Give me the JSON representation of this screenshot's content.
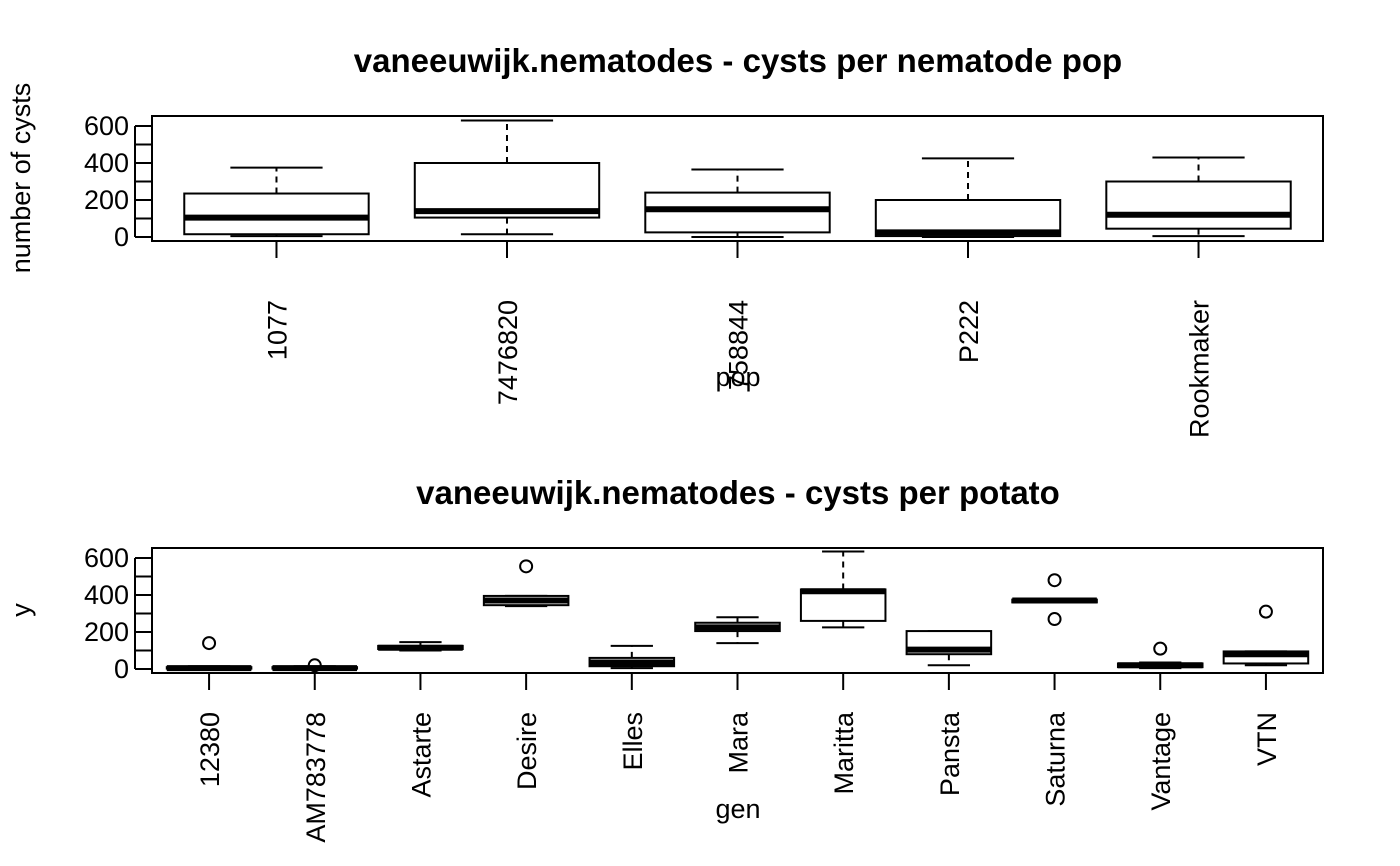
{
  "chart_data": [
    {
      "type": "boxplot",
      "title": "vaneeuwijk.nematodes - cysts per nematode pop",
      "xlabel": "pop",
      "ylabel": "number of cysts",
      "ylim": [
        0,
        650
      ],
      "y_ticks": [
        0,
        200,
        400,
        600
      ],
      "y_tick_labels": [
        "0",
        "200",
        "400",
        "600"
      ],
      "categories": [
        "1077",
        "7476820",
        "758844",
        "P222",
        "Rookmaker"
      ],
      "boxes": [
        {
          "min": 5,
          "q1": 15,
          "median": 105,
          "q3": 235,
          "max": 375,
          "outliers": []
        },
        {
          "min": 15,
          "q1": 105,
          "median": 140,
          "q3": 400,
          "max": 630,
          "outliers": []
        },
        {
          "min": 0,
          "q1": 25,
          "median": 150,
          "q3": 240,
          "max": 365,
          "outliers": []
        },
        {
          "min": 0,
          "q1": 5,
          "median": 25,
          "q3": 200,
          "max": 425,
          "outliers": []
        },
        {
          "min": 5,
          "q1": 45,
          "median": 120,
          "q3": 300,
          "max": 430,
          "outliers": []
        }
      ]
    },
    {
      "type": "boxplot",
      "title": "vaneeuwijk.nematodes - cysts per potato",
      "xlabel": "gen",
      "ylabel": "y",
      "ylim": [
        0,
        650
      ],
      "y_ticks": [
        0,
        200,
        400,
        600
      ],
      "y_tick_labels": [
        "0",
        "200",
        "400",
        "600"
      ],
      "categories": [
        "12380",
        "AM783778",
        "Astarte",
        "Desire",
        "Elles",
        "Mara",
        "Maritta",
        "Pansta",
        "Saturna",
        "Vantage",
        "VTN"
      ],
      "boxes": [
        {
          "min": 0,
          "q1": 2,
          "median": 5,
          "q3": 10,
          "max": 15,
          "outliers": [
            140
          ]
        },
        {
          "min": 0,
          "q1": 2,
          "median": 5,
          "q3": 10,
          "max": 15,
          "outliers": [
            20
          ]
        },
        {
          "min": 100,
          "q1": 108,
          "median": 115,
          "q3": 125,
          "max": 145,
          "outliers": []
        },
        {
          "min": 340,
          "q1": 345,
          "median": 370,
          "q3": 395,
          "max": 395,
          "outliers": [
            555
          ]
        },
        {
          "min": 5,
          "q1": 15,
          "median": 35,
          "q3": 60,
          "max": 125,
          "outliers": []
        },
        {
          "min": 140,
          "q1": 205,
          "median": 225,
          "q3": 250,
          "max": 280,
          "outliers": []
        },
        {
          "min": 225,
          "q1": 260,
          "median": 420,
          "q3": 430,
          "max": 635,
          "outliers": []
        },
        {
          "min": 20,
          "q1": 80,
          "median": 105,
          "q3": 205,
          "max": 205,
          "outliers": []
        },
        {
          "min": 360,
          "q1": 360,
          "median": 370,
          "q3": 375,
          "max": 375,
          "outliers": [
            480,
            270
          ]
        },
        {
          "min": 5,
          "q1": 10,
          "median": 20,
          "q3": 30,
          "max": 35,
          "outliers": [
            110
          ]
        },
        {
          "min": 20,
          "q1": 30,
          "median": 80,
          "q3": 95,
          "max": 95,
          "outliers": [
            310
          ]
        }
      ]
    }
  ]
}
